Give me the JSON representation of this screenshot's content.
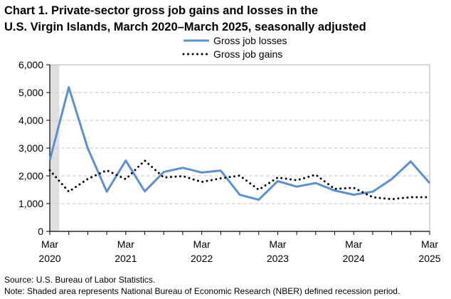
{
  "chart_data": {
    "type": "line",
    "title_line1": "Chart 1. Private-sector gross job gains and losses in the",
    "title_line2": "U.S. Virgin Islands, March 2020–March 2025, seasonally adjusted",
    "x": [
      "Mar 2020",
      "Jun 2020",
      "Sep 2020",
      "Dec 2020",
      "Mar 2021",
      "Jun 2021",
      "Sep 2021",
      "Dec 2021",
      "Mar 2022",
      "Jun 2022",
      "Sep 2022",
      "Dec 2022",
      "Mar 2023",
      "Jun 2023",
      "Sep 2023",
      "Dec 2023",
      "Mar 2024",
      "Jun 2024",
      "Sep 2024",
      "Dec 2024",
      "Mar 2025"
    ],
    "x_tick_labels": [
      {
        "index": 0,
        "month": "Mar",
        "year": "2020"
      },
      {
        "index": 4,
        "month": "Mar",
        "year": "2021"
      },
      {
        "index": 8,
        "month": "Mar",
        "year": "2022"
      },
      {
        "index": 12,
        "month": "Mar",
        "year": "2023"
      },
      {
        "index": 16,
        "month": "Mar",
        "year": "2024"
      },
      {
        "index": 20,
        "month": "Mar",
        "year": "2025"
      }
    ],
    "y_ticks": [
      "0",
      "1,000",
      "2,000",
      "3,000",
      "4,000",
      "5,000",
      "6,000"
    ],
    "ylim": [
      0,
      6000
    ],
    "grid": "horizontal dashed",
    "legend_placement": "top-center",
    "recession_shading": {
      "start_index": 0,
      "end_index": 0.5,
      "color": "#e0e0e0"
    },
    "series": [
      {
        "name": "Gross job losses",
        "color": "#5b8fd6",
        "style": "solid",
        "values": [
          2560,
          5190,
          2990,
          1430,
          2550,
          1440,
          2140,
          2290,
          2120,
          2190,
          1320,
          1140,
          1810,
          1610,
          1740,
          1470,
          1320,
          1430,
          1880,
          2520,
          1740
        ]
      },
      {
        "name": "Gross job gains",
        "color": "#000000",
        "style": "dotted",
        "values": [
          2200,
          1430,
          1890,
          2200,
          1880,
          2550,
          1940,
          1990,
          1780,
          1910,
          2010,
          1500,
          1940,
          1840,
          2040,
          1530,
          1570,
          1230,
          1160,
          1230,
          1230
        ]
      }
    ]
  },
  "footer": {
    "source": "Source: U.S. Bureau of Labor Statistics.",
    "note": "Note: Shaded area represents National Bureau of Economic Research (NBER) defined recession period."
  }
}
